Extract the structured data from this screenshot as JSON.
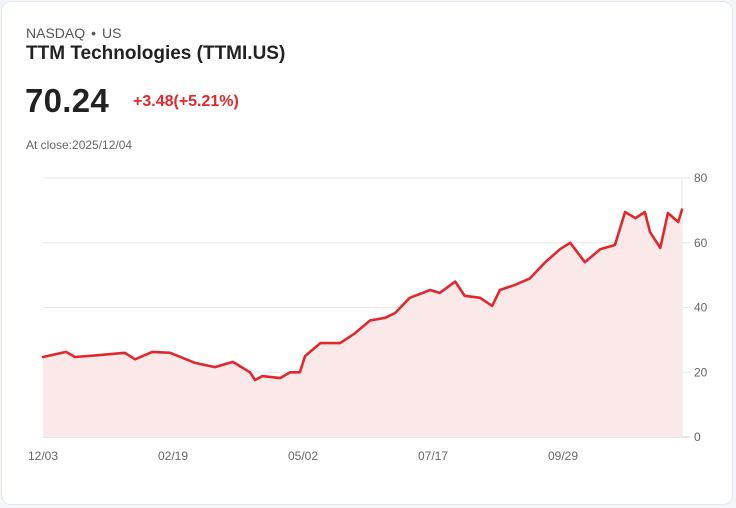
{
  "header": {
    "exchange": "NASDAQ",
    "separator": "•",
    "region": "US",
    "name": "TTM Technologies (TTMI.US)",
    "price": "70.24",
    "change": "+3.48(+5.21%)",
    "close_label": "At close:2025/12/04"
  },
  "colors": {
    "line": "#e0282e",
    "fill": "#fbe8e8",
    "grid": "#e6e6e6",
    "text": "#222222",
    "muted": "#666666"
  },
  "chart_data": {
    "type": "area",
    "title": "TTM Technologies (TTMI.US)",
    "xlabel": "",
    "ylabel": "",
    "ylim": [
      0,
      80
    ],
    "yticks": [
      0,
      20,
      40,
      60,
      80
    ],
    "xtick_labels": [
      "12/03",
      "02/19",
      "05/02",
      "07/17",
      "09/29"
    ],
    "grid": true,
    "legend": "none",
    "x_range": [
      "2024/12/03",
      "2025/12/04"
    ],
    "points": [
      [
        0,
        24.7
      ],
      [
        0.036,
        26.3
      ],
      [
        0.05,
        24.7
      ],
      [
        0.089,
        25.3
      ],
      [
        0.128,
        26.0
      ],
      [
        0.144,
        24.0
      ],
      [
        0.171,
        26.3
      ],
      [
        0.199,
        26.0
      ],
      [
        0.238,
        22.9
      ],
      [
        0.269,
        21.6
      ],
      [
        0.297,
        23.2
      ],
      [
        0.324,
        20.0
      ],
      [
        0.332,
        17.6
      ],
      [
        0.343,
        18.8
      ],
      [
        0.371,
        18.2
      ],
      [
        0.387,
        20.0
      ],
      [
        0.402,
        20.0
      ],
      [
        0.41,
        25.0
      ],
      [
        0.434,
        29.0
      ],
      [
        0.465,
        29.0
      ],
      [
        0.488,
        32.0
      ],
      [
        0.512,
        36.0
      ],
      [
        0.535,
        36.8
      ],
      [
        0.551,
        38.3
      ],
      [
        0.574,
        43.0
      ],
      [
        0.606,
        45.4
      ],
      [
        0.621,
        44.5
      ],
      [
        0.645,
        48.0
      ],
      [
        0.66,
        43.6
      ],
      [
        0.684,
        43.0
      ],
      [
        0.703,
        40.5
      ],
      [
        0.715,
        45.4
      ],
      [
        0.739,
        47.0
      ],
      [
        0.762,
        49.0
      ],
      [
        0.786,
        54.0
      ],
      [
        0.809,
        58.0
      ],
      [
        0.825,
        60.0
      ],
      [
        0.848,
        54.0
      ],
      [
        0.872,
        58.0
      ],
      [
        0.895,
        59.3
      ],
      [
        0.911,
        69.5
      ],
      [
        0.927,
        67.6
      ],
      [
        0.942,
        69.5
      ],
      [
        0.95,
        63.3
      ],
      [
        0.966,
        58.4
      ],
      [
        0.978,
        69.2
      ],
      [
        0.994,
        66.4
      ],
      [
        1.0,
        70.24
      ]
    ]
  }
}
